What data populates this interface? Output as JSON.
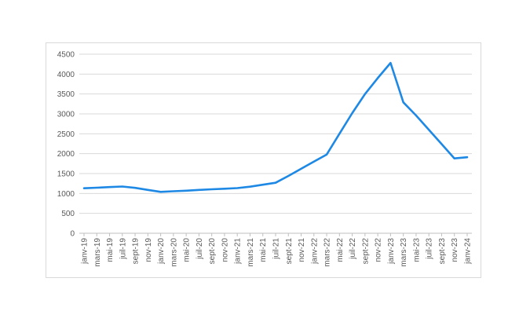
{
  "chart_data": {
    "type": "line",
    "title": "",
    "xlabel": "",
    "ylabel": "",
    "ylim": [
      0,
      4500
    ],
    "y_ticks": [
      "0",
      "500",
      "1000",
      "1500",
      "2000",
      "2500",
      "3000",
      "3500",
      "4000",
      "4500"
    ],
    "grid": true,
    "legend": "none",
    "categories": [
      "janv-19",
      "mars-19",
      "mai-19",
      "juil-19",
      "sept-19",
      "nov-19",
      "janv-20",
      "mars-20",
      "mai-20",
      "juil-20",
      "sept-20",
      "nov-20",
      "janv-21",
      "mars-21",
      "mai-21",
      "juil-21",
      "sept-21",
      "nov-21",
      "janv-22",
      "mars-22",
      "mai-22",
      "juil-22",
      "sept-22",
      "nov-22",
      "janv-23",
      "mars-23",
      "mai-23",
      "juil-23",
      "sept-23",
      "nov-23",
      "janv-24"
    ],
    "series": [
      {
        "color": "#1e88e5",
        "values": [
          1130,
          1145,
          1160,
          1175,
          1140,
          1090,
          1040,
          1055,
          1070,
          1090,
          1105,
          1120,
          1135,
          1170,
          1220,
          1270,
          1440,
          1620,
          1800,
          1980,
          2500,
          3020,
          3500,
          3900,
          4280,
          3290,
          2960,
          2600,
          2240,
          1880,
          1910
        ]
      }
    ]
  }
}
